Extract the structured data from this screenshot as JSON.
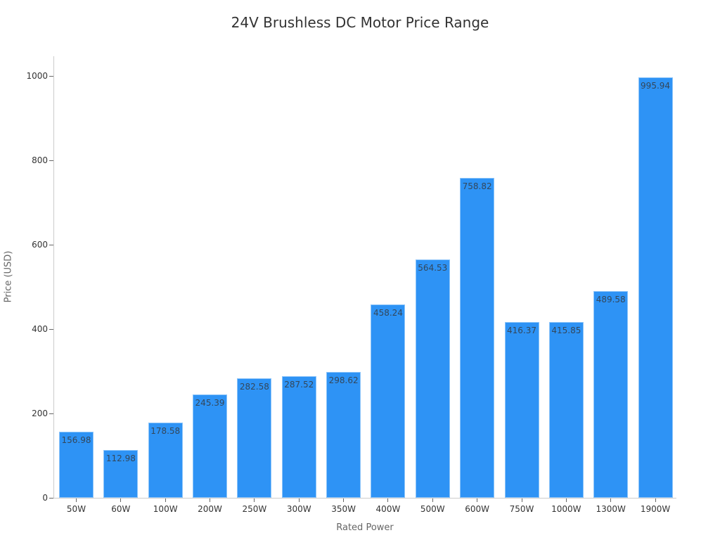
{
  "chart_data": {
    "type": "bar",
    "title": "24V Brushless DC Motor Price Range",
    "xlabel": "Rated Power",
    "ylabel": "Price (USD)",
    "categories": [
      "50W",
      "60W",
      "100W",
      "200W",
      "250W",
      "300W",
      "350W",
      "400W",
      "500W",
      "600W",
      "750W",
      "1000W",
      "1300W",
      "1900W"
    ],
    "values": [
      156.98,
      112.98,
      178.58,
      245.39,
      282.58,
      287.52,
      298.62,
      458.24,
      564.53,
      758.82,
      416.37,
      415.85,
      489.58,
      995.94
    ],
    "value_labels": [
      "156.98",
      "112.98",
      "178.58",
      "245.39",
      "282.58",
      "287.52",
      "298.62",
      "458.24",
      "564.53",
      "758.82",
      "416.37",
      "415.85",
      "489.58",
      "995.94"
    ],
    "yticks": [
      "0",
      "200",
      "400",
      "600",
      "800",
      "1000"
    ],
    "ylim": [
      0,
      1045
    ],
    "grid": false,
    "legend": null,
    "bar_color": "#2e93f5"
  }
}
